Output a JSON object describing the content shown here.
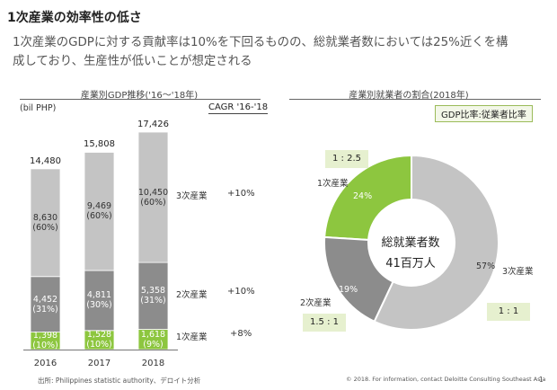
{
  "title": "1次産業の効率性の低さ",
  "subtitle_line1": "1次産業のGDPに対する貢献率は10%を下回るものの、総就業者数においては25%近くを構",
  "subtitle_line2": "成しており、生産性が低いことが想定される",
  "left_panel": {
    "title": "産業別GDP推移('16～'18年)",
    "unit": "(bil PHP)",
    "cagr_header": "CAGR '16-'18"
  },
  "right_panel": {
    "title": "産業別就業者の割合(2018年)",
    "ratio_header": "GDP比率:従業者比率",
    "center_line1": "総就業者数",
    "center_line2": "41百万人"
  },
  "chart_data": [
    {
      "type": "bar",
      "stacked": true,
      "categories": [
        "2016",
        "2017",
        "2018"
      ],
      "totals": [
        "14,480",
        "15,808",
        "17,426"
      ],
      "series": [
        {
          "name": "1次産業",
          "values": [
            1398,
            1528,
            1618
          ],
          "labels": [
            "1,398",
            "1,528",
            "1,618"
          ],
          "shares": [
            "(10%)",
            "(10%)",
            "(9%)"
          ],
          "color": "#8dc63f",
          "cagr": "+8%"
        },
        {
          "name": "2次産業",
          "values": [
            4452,
            4811,
            5358
          ],
          "labels": [
            "4,452",
            "4,811",
            "5,358"
          ],
          "shares": [
            "(31%)",
            "(30%)",
            "(31%)"
          ],
          "color": "#8c8c8c",
          "cagr": "+10%"
        },
        {
          "name": "3次産業",
          "values": [
            8630,
            9469,
            10450
          ],
          "labels": [
            "8,630",
            "9,469",
            "10,450"
          ],
          "shares": [
            "(60%)",
            "(60%)",
            "(60%)"
          ],
          "color": "#c4c4c4",
          "cagr": "+10%"
        }
      ]
    },
    {
      "type": "pie",
      "donut": true,
      "slices": [
        {
          "name": "1次産業",
          "value": 24,
          "label": "24%",
          "ratio": "1 : 2.5",
          "color": "#8dc63f"
        },
        {
          "name": "2次産業",
          "value": 19,
          "label": "19%",
          "ratio": "1.5 : 1",
          "color": "#8c8c8c"
        },
        {
          "name": "3次産業",
          "value": 57,
          "label": "57%",
          "ratio": "1 : 1",
          "color": "#c4c4c4"
        }
      ]
    }
  ],
  "footer": {
    "source": "出所: Philippines statistic authority、デロイト分析",
    "copyright": "© 2018. For information, contact Deloitte Consulting Southeast Asia",
    "page": "1"
  }
}
